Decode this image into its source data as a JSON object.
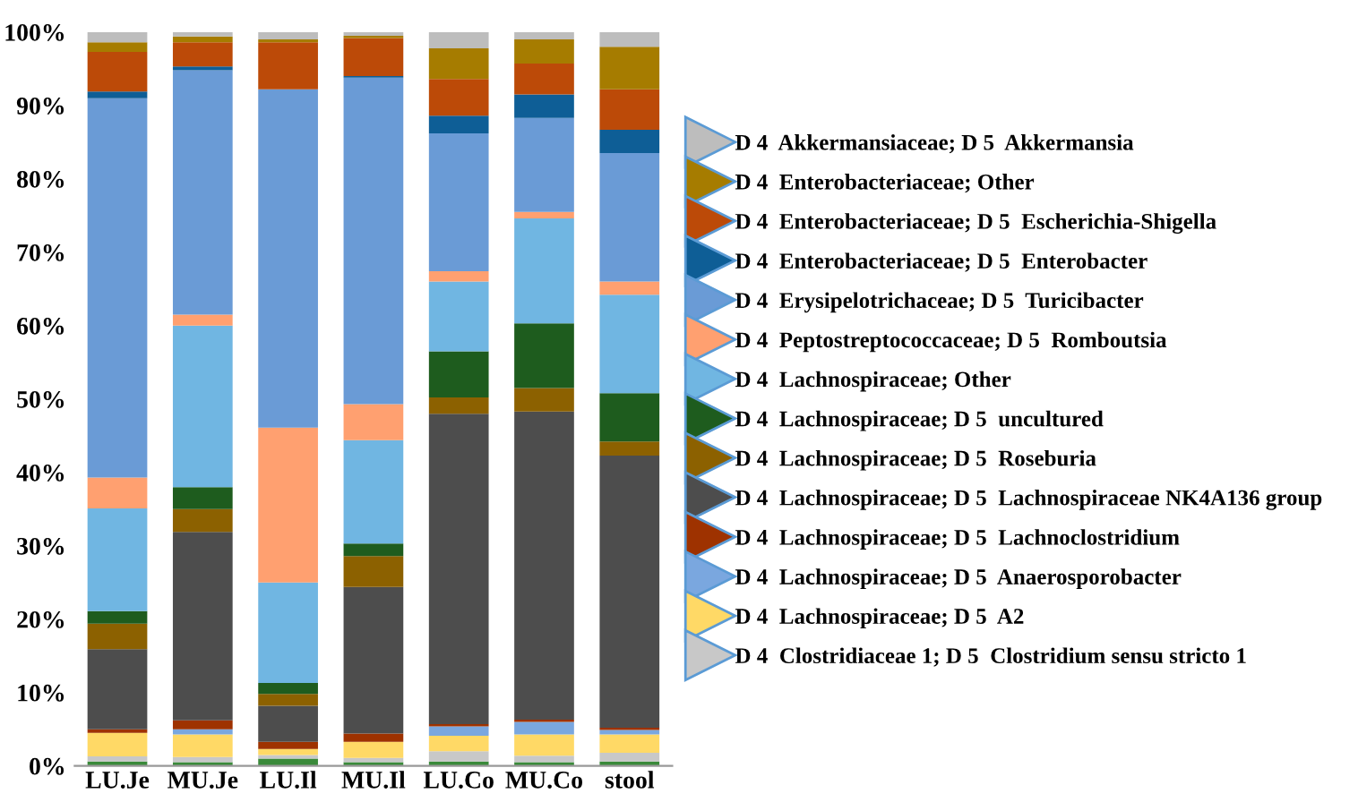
{
  "chart_data": {
    "type": "bar",
    "stacked": true,
    "categories": [
      "LU.Je",
      "MU.Je",
      "LU.Il",
      "MU.Il",
      "LU.Co",
      "MU.Co",
      "stool"
    ],
    "series": [
      {
        "color": "#3a8a3a",
        "values": [
          0.6,
          0.5,
          1.0,
          0.5,
          0.6,
          0.5,
          0.6
        ]
      },
      {
        "name": "D 4  Clostridiaceae 1; D 5  Clostridium sensu stricto 1",
        "color": "#c8c8c8",
        "values": [
          0.7,
          0.7,
          0.5,
          0.6,
          1.4,
          0.9,
          1.2
        ]
      },
      {
        "name": "D 4  Lachnospiraceae; D 5  A2",
        "color": "#ffd966",
        "values": [
          3.2,
          3.1,
          0.8,
          2.2,
          2.1,
          2.9,
          2.5
        ]
      },
      {
        "name": "D 4  Lachnospiraceae; D 5  Anaerosporobacter",
        "color": "#7aa7df",
        "values": [
          0,
          0.7,
          0,
          0,
          1.3,
          1.7,
          0.6
        ]
      },
      {
        "name": "D 4  Lachnospiraceae; D 5  Lachnoclostridium",
        "color": "#9e3200",
        "values": [
          0.5,
          1.2,
          1.0,
          1.1,
          0.3,
          0.3,
          0.3
        ]
      },
      {
        "name": "D 4  Lachnospiraceae; D 5  Lachnospiraceae NK4A136 group",
        "color": "#4d4d4d",
        "values": [
          10.9,
          25.7,
          4.9,
          20.0,
          42.3,
          42.0,
          37.1
        ]
      },
      {
        "name": "D 4  Lachnospiraceae; D 5  Roseburia",
        "color": "#8c6100",
        "values": [
          3.5,
          3.1,
          1.6,
          4.2,
          2.2,
          3.2,
          1.9
        ]
      },
      {
        "name": "D 4  Lachnospiraceae; D 5  uncultured",
        "color": "#1e5c1e",
        "values": [
          1.7,
          3.0,
          1.5,
          1.7,
          6.3,
          8.8,
          6.6
        ]
      },
      {
        "name": "D 4  Lachnospiraceae; Other",
        "color": "#70b6e2",
        "values": [
          14.0,
          22.0,
          13.7,
          14.1,
          9.5,
          14.3,
          13.4
        ]
      },
      {
        "name": "D 4  Peptostreptococcaceae; D 5  Romboutsia",
        "color": "#ffa070",
        "values": [
          4.2,
          1.5,
          21.1,
          4.9,
          1.4,
          0.9,
          1.8
        ]
      },
      {
        "name": "D 4  Erysipelotrichaceae; D 5  Turicibacter",
        "color": "#6a9bd6",
        "values": [
          51.7,
          33.3,
          46.1,
          44.5,
          18.8,
          12.8,
          17.5
        ]
      },
      {
        "name": "D 4  Enterobacteriaceae; D 5  Enterobacter",
        "color": "#0e5e96",
        "values": [
          0.9,
          0.5,
          0,
          0.2,
          2.4,
          3.2,
          3.2
        ]
      },
      {
        "name": "D 4  Enterobacteriaceae; D 5  Escherichia-Shigella",
        "color": "#bc4a08",
        "values": [
          5.4,
          3.3,
          6.4,
          5.2,
          5.0,
          4.2,
          5.5
        ]
      },
      {
        "name": "D 4  Enterobacteriaceae; Other",
        "color": "#a67c00",
        "values": [
          1.3,
          0.8,
          0.4,
          0.3,
          4.2,
          3.3,
          5.8
        ]
      },
      {
        "name": "D 4  Akkermansiaceae; D 5  Akkermansia",
        "color": "#bdbdbd",
        "values": [
          1.4,
          0.6,
          1.0,
          0.5,
          2.2,
          1.0,
          2.0
        ]
      }
    ],
    "ylim": [
      0,
      100
    ],
    "yticks": [
      {
        "value": 0,
        "label": "0%"
      },
      {
        "value": 10,
        "label": "10%"
      },
      {
        "value": 20,
        "label": "20%"
      },
      {
        "value": 30,
        "label": "30%"
      },
      {
        "value": 40,
        "label": "40%"
      },
      {
        "value": 50,
        "label": "50%"
      },
      {
        "value": 60,
        "label": "60%"
      },
      {
        "value": 70,
        "label": "70%"
      },
      {
        "value": 80,
        "label": "80%"
      },
      {
        "value": 90,
        "label": "90%"
      },
      {
        "value": 100,
        "label": "100%"
      }
    ],
    "grid": false,
    "legend": "right",
    "marker": "triangle"
  }
}
